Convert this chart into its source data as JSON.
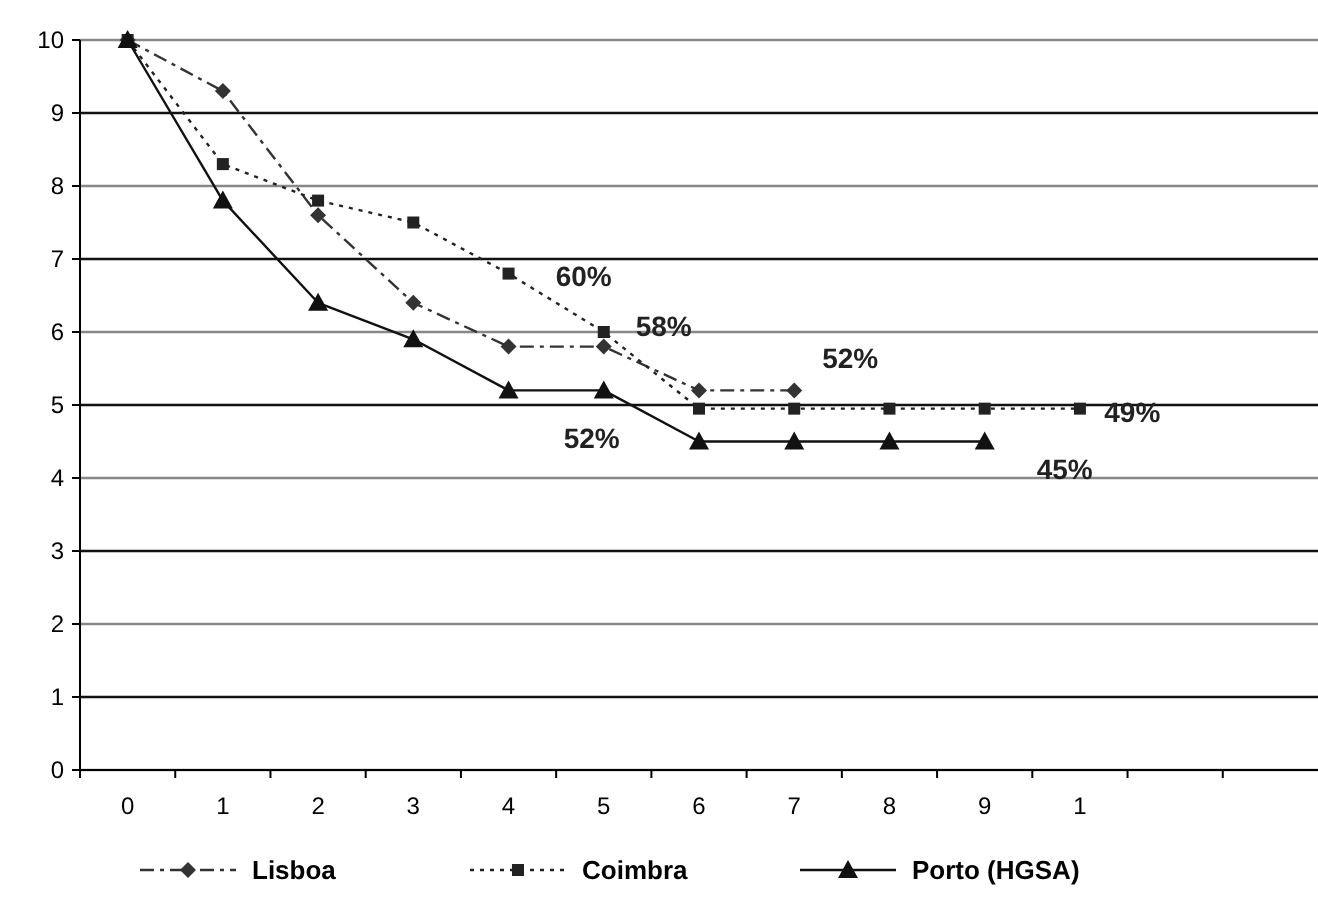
{
  "chart_data": {
    "type": "line",
    "categories": [
      "0",
      "1",
      "2",
      "3",
      "4",
      "5",
      "6",
      "7",
      "8",
      "9",
      "1",
      null,
      null
    ],
    "series": [
      {
        "name": "Lisboa",
        "color": "#333333",
        "line_style": "dashed",
        "marker": "diamond",
        "values": [
          10,
          9.3,
          7.6,
          6.4,
          5.8,
          5.8,
          5.2,
          5.2,
          null,
          null,
          null,
          null,
          null
        ]
      },
      {
        "name": "Coimbra",
        "color": "#222222",
        "line_style": "dotted",
        "marker": "square",
        "values": [
          10,
          8.3,
          7.8,
          7.5,
          6.8,
          6.0,
          4.95,
          4.95,
          4.95,
          4.95,
          4.95,
          null,
          null
        ]
      },
      {
        "name": "Porto (HGSA)",
        "color": "#111111",
        "line_style": "solid",
        "marker": "triangle",
        "values": [
          10,
          7.8,
          6.4,
          5.9,
          5.2,
          5.2,
          4.5,
          4.5,
          4.5,
          4.5,
          null,
          null,
          null
        ]
      }
    ],
    "ylim": [
      0,
      10
    ],
    "yticks": [
      0,
      1,
      2,
      3,
      4,
      5,
      6,
      7,
      8,
      9,
      10
    ],
    "grid": "y",
    "legend": "bottom",
    "annotations": [
      {
        "text": "60%",
        "x": "5",
        "y": 6.0
      },
      {
        "text": "58%",
        "x": "5",
        "y": 5.8
      },
      {
        "text": "52%",
        "x": "5",
        "y": 5.2
      },
      {
        "text": "52%",
        "x": "7",
        "y": 5.2
      },
      "49%",
      {
        "text": "45%",
        "x": "9",
        "y": 4.5
      }
    ]
  }
}
